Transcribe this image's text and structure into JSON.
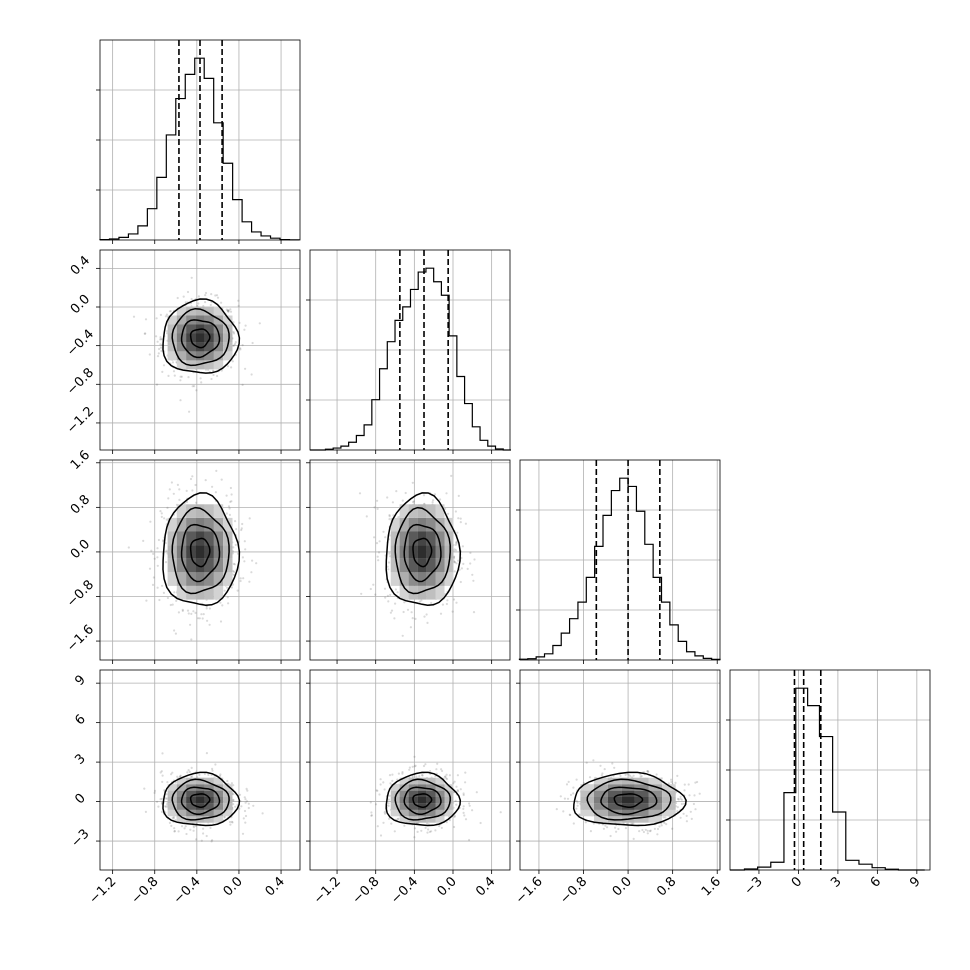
{
  "chart_data": {
    "type": "corner",
    "parameters": 4,
    "grid": true,
    "ranges": [
      [
        -1.32,
        0.58
      ],
      [
        -1.48,
        0.59
      ],
      [
        -1.94,
        1.65
      ],
      [
        -5.2,
        10.0
      ]
    ],
    "ticks": [
      [
        -1.2,
        -0.8,
        -0.4,
        0.0,
        0.4
      ],
      [
        -1.2,
        -0.8,
        -0.4,
        0.0,
        0.4
      ],
      [
        -1.6,
        -0.8,
        0.0,
        0.8,
        1.6
      ],
      [
        -3,
        0,
        3,
        6,
        9
      ]
    ],
    "tick_labels": [
      [
        "−1.2",
        "−0.8",
        "−0.4",
        "0.0",
        "0.4"
      ],
      [
        "−1.2",
        "−0.8",
        "−0.4",
        "0.0",
        "0.4"
      ],
      [
        "−1.6",
        "−0.8",
        "0.0",
        "0.8",
        "1.6"
      ],
      [
        "−3",
        "0",
        "3",
        "6",
        "9"
      ]
    ],
    "histograms": [
      {
        "edges": [
          -1.32,
          -1.23,
          -1.14,
          -1.05,
          -0.96,
          -0.87,
          -0.78,
          -0.69,
          -0.6,
          -0.51,
          -0.42,
          -0.33,
          -0.24,
          -0.15,
          -0.06,
          0.03,
          0.12,
          0.21,
          0.3,
          0.39,
          0.48,
          0.57
        ],
        "counts": [
          0.2,
          0.5,
          1.3,
          3.0,
          7.0,
          15.5,
          31,
          52,
          70,
          82,
          90,
          80,
          58,
          38,
          20,
          9,
          4,
          2,
          0.9,
          0.2,
          0.1
        ],
        "quantiles": [
          -0.57,
          -0.37,
          -0.16
        ]
      },
      {
        "edges": [
          -1.48,
          -1.4,
          -1.32,
          -1.24,
          -1.16,
          -1.08,
          -1.0,
          -0.92,
          -0.84,
          -0.76,
          -0.68,
          -0.6,
          -0.52,
          -0.44,
          -0.36,
          -0.28,
          -0.2,
          -0.12,
          -0.04,
          0.04,
          0.12,
          0.2,
          0.28,
          0.36,
          0.44,
          0.52,
          0.6
        ],
        "counts": [
          0,
          0,
          0.4,
          1,
          2,
          4,
          7.5,
          13,
          26,
          42,
          56,
          67,
          74,
          83,
          92,
          94,
          87,
          80,
          59,
          38,
          24,
          12,
          5,
          2,
          0.5,
          0
        ],
        "quantiles": [
          -0.55,
          -0.3,
          -0.05
        ]
      },
      {
        "edges": [
          -1.95,
          -1.8,
          -1.65,
          -1.5,
          -1.35,
          -1.2,
          -1.05,
          -0.9,
          -0.75,
          -0.6,
          -0.45,
          -0.3,
          -0.15,
          0.0,
          0.15,
          0.3,
          0.45,
          0.6,
          0.75,
          0.9,
          1.05,
          1.2,
          1.35,
          1.5,
          1.65
        ],
        "counts": [
          0.4,
          0.6,
          1.5,
          3,
          7,
          13,
          20,
          28,
          40,
          55,
          70,
          82,
          88,
          84,
          72,
          56,
          40,
          28,
          17,
          9,
          4,
          2,
          0.8,
          0.3
        ],
        "quantiles": [
          -0.57,
          0.0,
          0.57
        ]
      },
      {
        "edges": [
          -5.2,
          -4.1,
          -3.1,
          -2.1,
          -1.1,
          -0.2,
          0.7,
          1.6,
          2.6,
          3.6,
          4.6,
          5.6,
          6.6,
          7.6,
          8.6,
          9.6
        ],
        "counts": [
          0,
          0.5,
          1.5,
          4,
          40,
          94,
          85,
          69,
          30,
          5,
          3,
          1.2,
          0.4,
          0,
          0
        ],
        "quantiles": [
          -0.3,
          0.4,
          1.7
        ]
      }
    ],
    "pairs": [
      {
        "row": 1,
        "col": 0,
        "mean": [
          -0.37,
          -0.32
        ],
        "sigma": [
          0.18,
          0.19
        ]
      },
      {
        "row": 2,
        "col": 0,
        "mean": [
          -0.37,
          0.0
        ],
        "sigma": [
          0.18,
          0.5
        ]
      },
      {
        "row": 2,
        "col": 1,
        "mean": [
          -0.32,
          0.0
        ],
        "sigma": [
          0.19,
          0.5
        ]
      },
      {
        "row": 3,
        "col": 0,
        "mean": [
          -0.37,
          0.1
        ],
        "sigma": [
          0.18,
          1.0
        ]
      },
      {
        "row": 3,
        "col": 1,
        "mean": [
          -0.32,
          0.1
        ],
        "sigma": [
          0.19,
          1.0
        ]
      },
      {
        "row": 3,
        "col": 2,
        "mean": [
          0.0,
          0.1
        ],
        "sigma": [
          0.5,
          1.0
        ]
      }
    ]
  }
}
